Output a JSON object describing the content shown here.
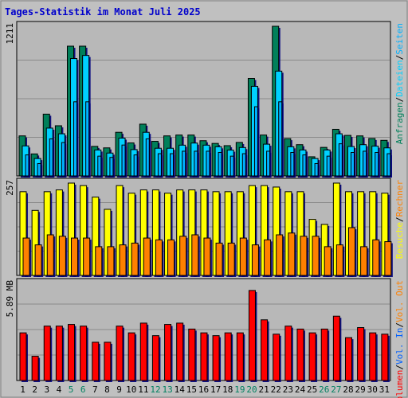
{
  "title": "Tages-Statistik im Monat Juli 2025",
  "colors": {
    "background": "#c0c0c0",
    "panel": "#b8b8b8",
    "grid": "#8a8a8a",
    "frame": "#000000",
    "title": "#0000cc",
    "anfragen": "#00805a",
    "dateien": "#00d0ff",
    "seiten": "#00b0ff",
    "besuche": "#ffff00",
    "rechner": "#ff8000",
    "vol_out": "#ff8000",
    "vol_in": "#0060ff",
    "volumen": "#ff0000",
    "weekend_label": "#008060",
    "day_label": "#000000"
  },
  "chart_data": [
    {
      "type": "bar",
      "panel": "top",
      "ymax_label": "1211",
      "ylim": [
        0,
        1211
      ],
      "legend": [
        "Anfragen",
        "/",
        "Dateien",
        "/",
        "Seiten"
      ],
      "categories": [
        "1",
        "2",
        "3",
        "4",
        "5",
        "6",
        "7",
        "8",
        "9",
        "10",
        "11",
        "12",
        "13",
        "14",
        "15",
        "16",
        "17",
        "18",
        "19",
        "20",
        "21",
        "22",
        "23",
        "24",
        "25",
        "26",
        "27",
        "28",
        "29",
        "30",
        "31"
      ],
      "series": [
        {
          "name": "Anfragen",
          "values": [
            324,
            178,
            500,
            406,
            1050,
            1050,
            239,
            227,
            353,
            267,
            419,
            280,
            324,
            331,
            331,
            285,
            263,
            245,
            271,
            789,
            331,
            1211,
            302,
            253,
            155,
            231,
            377,
            328,
            324,
            303,
            288
          ]
        },
        {
          "name": "Dateien",
          "values": [
            243,
            141,
            387,
            341,
            950,
            975,
            210,
            185,
            306,
            213,
            353,
            224,
            224,
            249,
            266,
            249,
            236,
            209,
            230,
            725,
            257,
            848,
            236,
            210,
            141,
            210,
            341,
            238,
            253,
            241,
            227
          ]
        },
        {
          "name": "Seiten",
          "values": [
            170,
            100,
            300,
            270,
            600,
            600,
            160,
            150,
            250,
            170,
            300,
            180,
            180,
            200,
            200,
            200,
            190,
            160,
            180,
            560,
            200,
            600,
            190,
            170,
            100,
            160,
            260,
            190,
            200,
            190,
            180
          ]
        }
      ]
    },
    {
      "type": "bar",
      "panel": "middle",
      "ymax_label": "257",
      "ylim": [
        0,
        257
      ],
      "legend": [
        "Besuche",
        "/",
        "Rechner"
      ],
      "categories": [
        "1",
        "2",
        "3",
        "4",
        "5",
        "6",
        "7",
        "8",
        "9",
        "10",
        "11",
        "12",
        "13",
        "14",
        "15",
        "16",
        "17",
        "18",
        "19",
        "20",
        "21",
        "22",
        "23",
        "24",
        "25",
        "26",
        "27",
        "28",
        "29",
        "30",
        "31"
      ],
      "series": [
        {
          "name": "Besuche",
          "values": [
            233,
            181,
            233,
            238,
            257,
            250,
            218,
            184,
            250,
            229,
            238,
            238,
            229,
            238,
            238,
            238,
            233,
            233,
            233,
            250,
            250,
            246,
            233,
            233,
            156,
            142,
            257,
            233,
            233,
            233,
            229
          ]
        },
        {
          "name": "Rechner",
          "values": [
            104,
            85,
            113,
            109,
            104,
            104,
            80,
            80,
            85,
            90,
            104,
            99,
            99,
            109,
            113,
            104,
            90,
            90,
            104,
            85,
            99,
            113,
            118,
            109,
            109,
            80,
            85,
            133,
            80,
            99,
            94
          ]
        }
      ]
    },
    {
      "type": "bar",
      "panel": "bottom",
      "ymax_label": "5.89 MB",
      "ylim": [
        0,
        5.89
      ],
      "unit": "MB",
      "legend": [
        "Volumen",
        "/",
        "Vol. In",
        "/",
        "Vol. Out"
      ],
      "categories": [
        "1",
        "2",
        "3",
        "4",
        "5",
        "6",
        "7",
        "8",
        "9",
        "10",
        "11",
        "12",
        "13",
        "14",
        "15",
        "16",
        "17",
        "18",
        "19",
        "20",
        "21",
        "22",
        "23",
        "24",
        "25",
        "26",
        "27",
        "28",
        "29",
        "30",
        "31"
      ],
      "series": [
        {
          "name": "Volumen",
          "values": [
            2.89,
            1.47,
            3.3,
            3.3,
            3.4,
            3.3,
            2.32,
            2.32,
            3.3,
            2.89,
            3.48,
            2.72,
            3.4,
            3.48,
            3.12,
            2.89,
            2.72,
            2.89,
            2.89,
            5.46,
            3.68,
            2.81,
            3.3,
            3.12,
            2.89,
            3.12,
            3.9,
            2.6,
            3.21,
            2.89,
            2.81
          ]
        }
      ]
    }
  ],
  "day_labels": [
    "1",
    "2",
    "3",
    "4",
    "5",
    "6",
    "7",
    "8",
    "9",
    "10",
    "11",
    "12",
    "13",
    "14",
    "15",
    "16",
    "17",
    "18",
    "19",
    "20",
    "21",
    "22",
    "23",
    "24",
    "25",
    "26",
    "27",
    "28",
    "29",
    "30",
    "31"
  ],
  "weekend_days": [
    "5",
    "6",
    "12",
    "13",
    "19",
    "20",
    "26",
    "27"
  ]
}
